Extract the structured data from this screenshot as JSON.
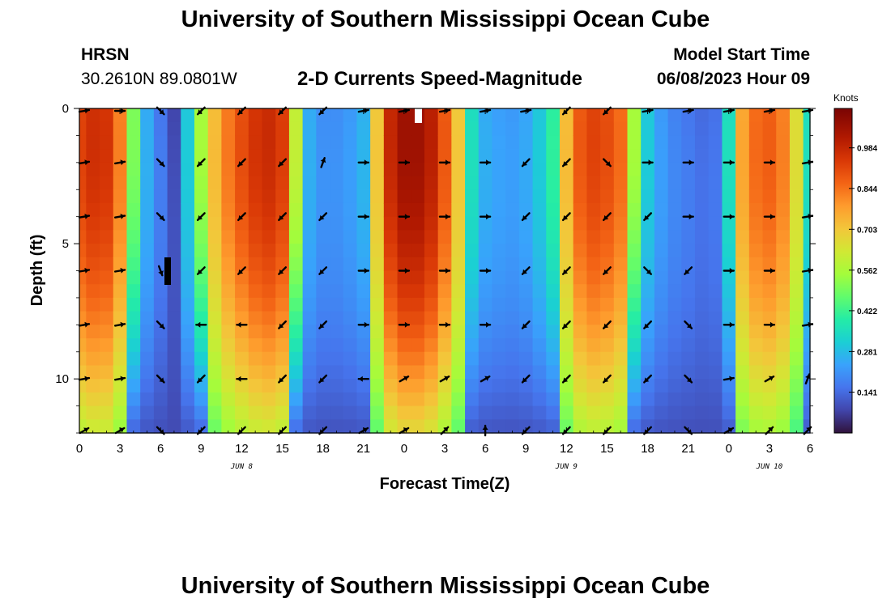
{
  "header": {
    "title": "University of Southern Mississippi Ocean Cube",
    "station": "HRSN",
    "coords": "30.2610N  89.0801W",
    "subtitle": "2-D Currents Speed-Magnitude",
    "model_start_label": "Model Start Time",
    "model_start_value": "06/08/2023 Hour 09"
  },
  "footer": {
    "title": "University of Southern Mississippi Ocean Cube"
  },
  "chart_data": {
    "type": "heatmap",
    "title": "2-D Currents Speed-Magnitude",
    "xlabel": "Forecast Time(Z)",
    "ylabel": "Depth (ft)",
    "x_tick_labels": [
      "0",
      "3",
      "6",
      "9",
      "12",
      "15",
      "18",
      "21",
      "0",
      "3",
      "6",
      "9",
      "12",
      "15",
      "18",
      "21",
      "0",
      "3",
      "6"
    ],
    "date_labels": [
      {
        "label": "JUN 8",
        "tick_index": 4
      },
      {
        "label": "JUN 9",
        "tick_index": 12
      },
      {
        "label": "JUN 10",
        "tick_index": 17
      }
    ],
    "x_range_hours": [
      0,
      54
    ],
    "y_range_ft": [
      0,
      12
    ],
    "y_ticks": [
      0,
      5,
      10
    ],
    "colorbar": {
      "title": "Knots",
      "range": [
        0,
        1.12
      ],
      "tick_values": [
        0.141,
        0.281,
        0.422,
        0.562,
        0.703,
        0.844,
        0.984
      ],
      "tick_labels": [
        "0.141",
        "0.281",
        "0.422",
        "0.562",
        "0.703",
        "0.844",
        "0.984"
      ]
    },
    "speed_surface_hours": [
      0,
      1,
      2,
      3,
      4,
      5,
      6,
      7,
      8,
      9,
      10,
      11,
      12,
      13,
      14,
      15,
      16,
      17,
      18,
      19,
      20,
      21,
      22,
      23,
      24,
      25,
      26,
      27,
      28,
      29,
      30,
      31,
      32,
      33,
      34,
      35,
      36,
      37,
      38,
      39,
      40,
      41,
      42,
      43,
      44,
      45,
      46,
      47,
      48,
      49,
      50,
      51,
      52,
      53,
      54
    ],
    "speed_surface": [
      0.92,
      0.96,
      0.95,
      0.82,
      0.5,
      0.25,
      0.16,
      0.08,
      0.3,
      0.55,
      0.72,
      0.83,
      0.9,
      0.95,
      0.97,
      0.93,
      0.6,
      0.25,
      0.2,
      0.2,
      0.22,
      0.26,
      0.7,
      0.98,
      1.05,
      1.05,
      1.0,
      0.88,
      0.7,
      0.35,
      0.25,
      0.23,
      0.22,
      0.24,
      0.3,
      0.4,
      0.72,
      0.88,
      0.92,
      0.9,
      0.85,
      0.55,
      0.3,
      0.22,
      0.18,
      0.16,
      0.14,
      0.15,
      0.35,
      0.76,
      0.85,
      0.87,
      0.82,
      0.65,
      0.35
    ],
    "depth_decay_rates": [
      0.45,
      0.9
    ],
    "vector_rows_ft": [
      0,
      2,
      4,
      6,
      8,
      10,
      12
    ],
    "vector_cols_hours": [
      0,
      3,
      6,
      9,
      12,
      15,
      18,
      21,
      24,
      27,
      30,
      33,
      36,
      39,
      42,
      45,
      48,
      51,
      54
    ],
    "vectors_deg": [
      [
        80,
        90,
        135,
        225,
        225,
        225,
        225,
        80,
        80,
        80,
        80,
        80,
        225,
        225,
        80,
        80,
        80,
        80,
        80
      ],
      [
        80,
        80,
        135,
        225,
        225,
        225,
        20,
        90,
        90,
        90,
        90,
        225,
        225,
        135,
        90,
        90,
        90,
        90,
        80
      ],
      [
        80,
        80,
        135,
        225,
        225,
        225,
        225,
        90,
        90,
        90,
        90,
        225,
        225,
        225,
        225,
        90,
        90,
        90,
        80
      ],
      [
        80,
        80,
        160,
        225,
        225,
        225,
        225,
        90,
        90,
        90,
        90,
        225,
        225,
        225,
        135,
        225,
        90,
        90,
        80
      ],
      [
        80,
        80,
        135,
        270,
        270,
        225,
        225,
        90,
        90,
        90,
        90,
        225,
        225,
        225,
        225,
        135,
        90,
        90,
        80
      ],
      [
        80,
        80,
        135,
        225,
        270,
        225,
        225,
        270,
        60,
        60,
        60,
        225,
        225,
        225,
        225,
        135,
        80,
        60,
        20
      ],
      [
        60,
        60,
        135,
        225,
        225,
        225,
        225,
        60,
        60,
        45,
        0,
        225,
        225,
        225,
        225,
        135,
        60,
        45,
        45
      ]
    ]
  }
}
